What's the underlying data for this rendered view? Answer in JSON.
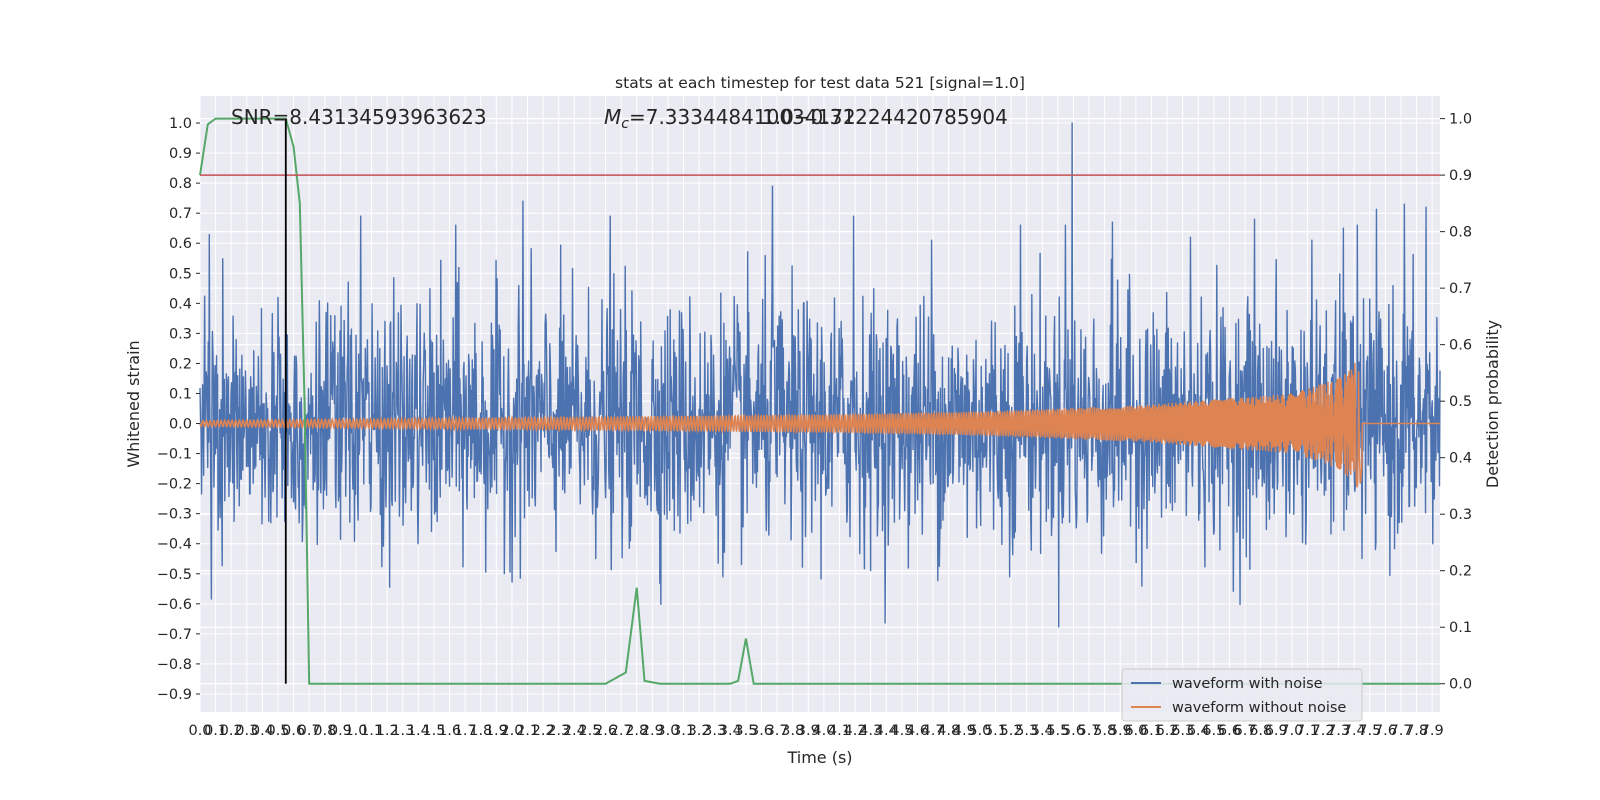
{
  "chart_data": {
    "type": "line",
    "title": "stats at each timestep for test data 521 [signal=1.0]",
    "xlabel": "Time (s)",
    "ylabel": "Whitened strain",
    "y2label": "Detection probability",
    "xlim": [
      0.0,
      7.95
    ],
    "ylim": [
      -0.96,
      1.09
    ],
    "y2lim": [
      -0.05,
      1.04
    ],
    "x_ticks": [
      "0.0",
      "0.1",
      "0.2",
      "0.3",
      "0.4",
      "0.5",
      "0.6",
      "0.7",
      "0.8",
      "0.9",
      "1.0",
      "1.1",
      "1.2",
      "1.3",
      "1.4",
      "1.5",
      "1.6",
      "1.7",
      "1.8",
      "1.9",
      "2.0",
      "2.1",
      "2.2",
      "2.3",
      "2.4",
      "2.5",
      "2.6",
      "2.7",
      "2.8",
      "2.9",
      "3.0",
      "3.1",
      "3.2",
      "3.3",
      "3.4",
      "3.5",
      "3.6",
      "3.7",
      "3.8",
      "3.9",
      "4.0",
      "4.1",
      "4.2",
      "4.3",
      "4.4",
      "4.5",
      "4.6",
      "4.7",
      "4.8",
      "4.9",
      "5.0",
      "5.1",
      "5.2",
      "5.3",
      "5.4",
      "5.5",
      "5.6",
      "5.7",
      "5.8",
      "5.9",
      "6.0",
      "6.1",
      "6.2",
      "6.3",
      "6.4",
      "6.5",
      "6.6",
      "6.7",
      "6.8",
      "6.9",
      "7.0",
      "7.1",
      "7.2",
      "7.3",
      "7.4",
      "7.5",
      "7.6",
      "7.7",
      "7.8",
      "7.9"
    ],
    "y_ticks": [
      "1.0",
      "0.9",
      "0.8",
      "0.7",
      "0.6",
      "0.5",
      "0.4",
      "0.3",
      "0.2",
      "0.1",
      "0.0",
      "−0.1",
      "−0.2",
      "−0.3",
      "−0.4",
      "−0.5",
      "−0.6",
      "−0.7",
      "−0.8",
      "−0.9"
    ],
    "y2_ticks": [
      "1.0",
      "0.9",
      "0.8",
      "0.7",
      "0.6",
      "0.5",
      "0.4",
      "0.3",
      "0.2",
      "0.1",
      "0.0"
    ],
    "grid": true,
    "legend_position": "lower-right",
    "annotations": {
      "snr": "SNR=8.43134593963623",
      "mc_symbol": "M",
      "mc_subscript": "c",
      "mc_value": "=7.333448410034172",
      "overlap": "1.0−0.31224420785904"
    },
    "series": [
      {
        "name": "waveform with noise",
        "axis": "left",
        "color": "#4c72b0",
        "noise_rms": 0.2,
        "x": [
          0.55,
          1.03,
          1.64,
          2.07,
          2.63,
          3.67,
          4.19,
          4.69,
          5.26,
          5.55,
          5.59,
          5.85,
          6.35,
          6.76,
          7.13,
          7.33,
          7.42,
          7.72,
          7.86
        ],
        "y": [
          0.72,
          0.69,
          0.66,
          0.74,
          0.69,
          0.79,
          0.69,
          0.61,
          0.66,
          0.66,
          1.0,
          0.67,
          0.62,
          0.68,
          0.61,
          0.65,
          0.66,
          0.73,
          0.72
        ]
      },
      {
        "name": "waveform without noise",
        "axis": "left",
        "color": "#dd8452",
        "x": [
          0.0,
          1.0,
          2.0,
          3.0,
          4.0,
          5.0,
          6.0,
          7.0,
          7.3,
          7.44,
          7.47,
          7.95
        ],
        "y": [
          0.01,
          0.015,
          0.02,
          0.025,
          0.03,
          0.04,
          0.06,
          0.1,
          0.15,
          0.22,
          0.0,
          0.0
        ]
      },
      {
        "name": "Detection probability",
        "axis": "right",
        "color": "#55a868",
        "x": [
          0.0,
          0.05,
          0.1,
          0.2,
          0.3,
          0.4,
          0.5,
          0.55,
          0.6,
          0.64,
          0.67,
          0.7,
          2.6,
          2.73,
          2.8,
          2.85,
          2.95,
          3.1,
          3.4,
          3.45,
          3.5,
          3.55,
          4.0,
          5.0,
          6.0,
          7.0,
          7.95
        ],
        "y": [
          0.9,
          0.99,
          1.0,
          1.0,
          1.0,
          1.0,
          1.0,
          1.0,
          0.95,
          0.85,
          0.5,
          0.0,
          0.0,
          0.02,
          0.17,
          0.005,
          0.0,
          0.0,
          0.0,
          0.005,
          0.08,
          0.0,
          0.0,
          0.0,
          0.0,
          0.0,
          0.0
        ]
      }
    ],
    "threshold_line": {
      "y": 0.9,
      "axis": "right",
      "color": "#c44e52"
    },
    "marker_line": {
      "x": 0.55,
      "color": "#000000"
    }
  }
}
